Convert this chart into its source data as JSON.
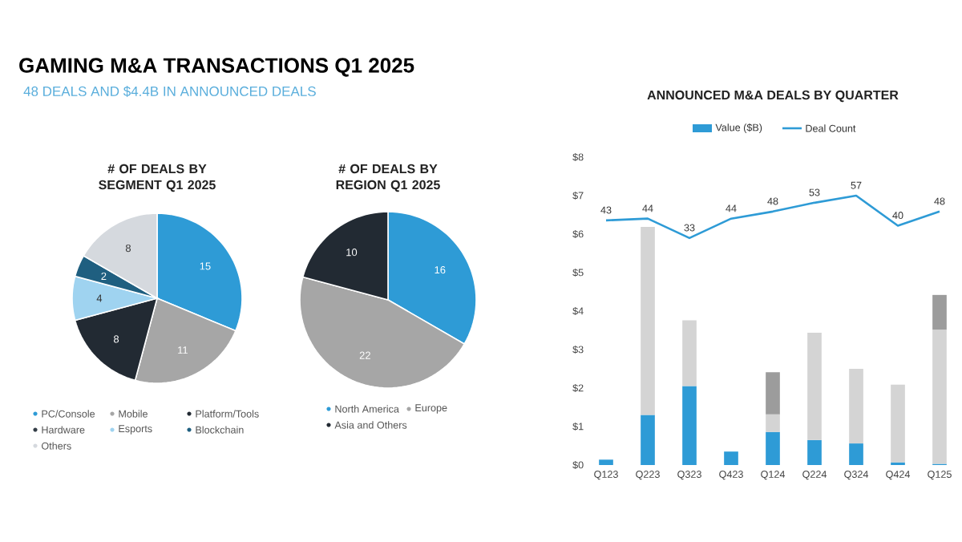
{
  "chart_data": [
    {
      "type": "other",
      "title": "GAMING M&A TRANSACTIONS Q1 2025",
      "subtitle": "48 DEALS AND $4.4B IN ANNOUNCED DEALS"
    },
    {
      "type": "pie",
      "title": "# OF DEALS BY SEGMENT Q1 2025",
      "categories": [
        "PC/Console",
        "Mobile",
        "Platform/Tools",
        "Hardware",
        "Esports",
        "Blockchain",
        "Others"
      ],
      "values": [
        15,
        11,
        8,
        0,
        4,
        2,
        8
      ],
      "colors": [
        "#2e9bd6",
        "#a6a6a6",
        "#222a33",
        "#333d47",
        "#9fd3f0",
        "#1f5f80",
        "#d5d9de"
      ],
      "value_labels": [
        "15",
        "11",
        "8",
        null,
        "4",
        "2",
        "8"
      ],
      "legend": "bottom"
    },
    {
      "type": "pie",
      "title": "# OF DEALS BY REGION Q1 2025",
      "categories": [
        "North America",
        "Europe",
        "Asia and Others"
      ],
      "values": [
        16,
        22,
        10
      ],
      "colors": [
        "#2e9bd6",
        "#a6a6a6",
        "#222a33"
      ],
      "value_labels": [
        "16",
        "22",
        "10"
      ],
      "legend": "bottom"
    },
    {
      "type": "bar",
      "title": "ANNOUNCED M&A DEALS BY QUARTER",
      "categories": [
        "Q123",
        "Q223",
        "Q323",
        "Q423",
        "Q124",
        "Q224",
        "Q324",
        "Q424",
        "Q125"
      ],
      "stacked": true,
      "legend": "top",
      "series": [
        {
          "name": "Value ($B)",
          "color": "#2e9bd6",
          "values": [
            0.14,
            1.3,
            2.05,
            0.35,
            0.86,
            0.65,
            0.56,
            0.07,
            0.03
          ]
        },
        {
          "color": "#d4d4d4",
          "values": [
            null,
            4.89,
            1.71,
            null,
            0.46,
            2.79,
            1.94,
            2.02,
            3.49
          ]
        },
        {
          "color": "#9c9c9c",
          "values": [
            null,
            null,
            null,
            null,
            1.09,
            null,
            null,
            null,
            0.9
          ]
        },
        {
          "name": "Deal Count",
          "type": "line",
          "axis": "y2",
          "color": "#2e9bd6",
          "values": [
            43,
            44,
            33,
            44,
            48,
            53,
            57,
            40,
            48
          ],
          "value_labels": [
            "43",
            "44",
            "33",
            "44",
            "48",
            "53",
            "57",
            "40",
            "48"
          ]
        }
      ],
      "ylim": [
        0,
        8
      ],
      "yticks": [
        {
          "value": 0,
          "label": "$0"
        },
        {
          "value": 1,
          "label": "$1"
        },
        {
          "value": 2,
          "label": "$2"
        },
        {
          "value": 3,
          "label": "$3"
        },
        {
          "value": 4,
          "label": "$4"
        },
        {
          "value": 5,
          "label": "$5"
        },
        {
          "value": 6,
          "label": "$6"
        },
        {
          "value": 7,
          "label": "$7"
        },
        {
          "value": 8,
          "label": "$8"
        }
      ],
      "grid": false
    }
  ]
}
